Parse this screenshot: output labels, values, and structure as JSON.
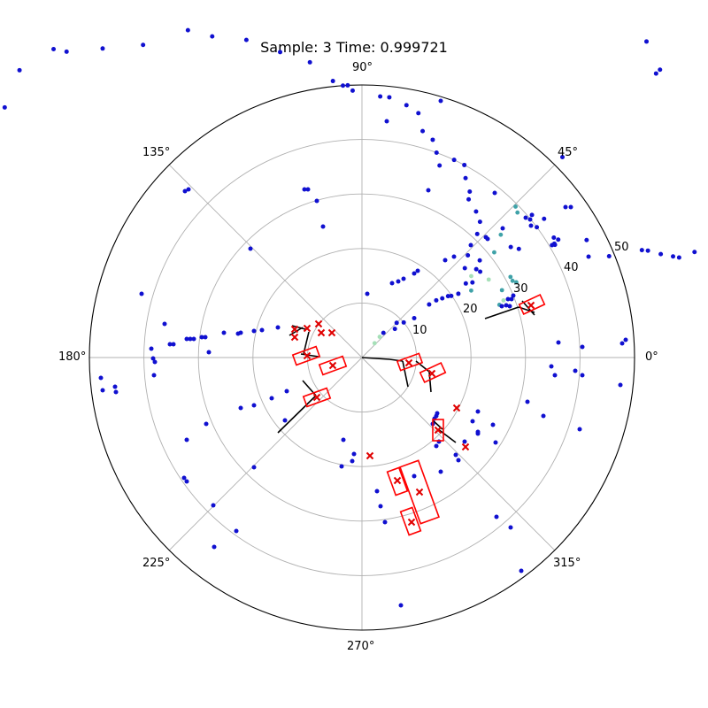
{
  "chart_data": {
    "type": "polar-scatter",
    "title": "Sample: 3 Time: 0.999721",
    "angle_ticks": [
      "0°",
      "45°",
      "90°",
      "135°",
      "180°",
      "225°",
      "270°",
      "315°"
    ],
    "radial_ticks": [
      "10",
      "20",
      "30",
      "40",
      "50"
    ],
    "rlim": [
      0,
      50
    ],
    "grid": true,
    "points_dark_blue": [
      [
        5.5,
        95
      ],
      [
        7,
        98
      ],
      [
        10.2,
        93.5
      ],
      [
        13.2,
        89
      ],
      [
        17,
        85
      ],
      [
        16.5,
        72
      ],
      [
        17.6,
        64
      ],
      [
        17.5,
        61
      ],
      [
        18,
        60
      ],
      [
        19.1,
        58
      ],
      [
        20.5,
        56
      ],
      [
        21,
        55
      ],
      [
        22.3,
        49
      ],
      [
        24,
        45.5
      ],
      [
        27.6,
        46.5
      ],
      [
        30.3,
        41
      ],
      [
        30.6,
        41
      ],
      [
        30.6,
        40.5
      ],
      [
        31,
        42
      ],
      [
        32,
        41.5
      ],
      [
        34.7,
        35
      ],
      [
        37.3,
        42
      ],
      [
        36.7,
        40
      ],
      [
        36.6,
        34
      ],
      [
        40,
        40.7
      ],
      [
        40.5,
        39.5
      ],
      [
        44,
        75
      ],
      [
        44,
        76
      ],
      [
        45,
        52
      ],
      [
        48,
        78
      ],
      [
        37,
        12
      ],
      [
        40,
        10
      ],
      [
        41,
        8
      ],
      [
        45,
        9
      ],
      [
        49,
        6
      ],
      [
        38.3,
        15.7
      ],
      [
        37.6,
        17.2
      ],
      [
        36.4,
        18.3
      ],
      [
        35.5,
        19.4
      ],
      [
        34.6,
        19.9
      ],
      [
        33.5,
        21.2
      ],
      [
        35.5,
        23.4
      ],
      [
        34.2,
        24.5
      ],
      [
        36,
        26.8
      ],
      [
        37.7,
        26.5
      ],
      [
        39.5,
        28
      ],
      [
        41,
        25
      ],
      [
        44,
        27
      ],
      [
        47,
        31
      ],
      [
        49,
        33
      ],
      [
        52,
        34
      ],
      [
        56,
        35
      ],
      [
        57,
        36.3
      ],
      [
        60,
        38
      ],
      [
        62,
        40
      ],
      [
        65,
        40
      ],
      [
        68,
        38
      ],
      [
        70,
        40
      ],
      [
        72,
        42
      ],
      [
        75,
        43
      ],
      [
        77,
        46
      ],
      [
        80,
        47
      ],
      [
        84,
        48
      ],
      [
        86,
        48
      ],
      [
        92,
        49
      ],
      [
        93,
        50
      ],
      [
        94,
        50
      ],
      [
        96,
        51
      ],
      [
        100,
        55
      ],
      [
        105,
        58
      ],
      [
        110,
        62
      ],
      [
        115,
        65
      ],
      [
        118,
        68
      ],
      [
        125,
        70
      ],
      [
        130,
        74
      ],
      [
        134,
        78
      ],
      [
        135,
        80
      ],
      [
        140,
        82
      ],
      [
        145,
        80
      ],
      [
        148,
        82
      ],
      [
        150,
        85
      ],
      [
        152,
        88
      ],
      [
        155,
        90
      ],
      [
        160,
        95
      ],
      [
        165,
        100
      ],
      [
        170,
        105
      ],
      [
        175,
        110
      ],
      [
        180,
        115
      ],
      [
        185,
        118
      ],
      [
        188,
        120
      ],
      [
        190,
        122
      ],
      [
        195,
        125
      ],
      [
        200,
        125
      ],
      [
        205,
        125
      ]
    ],
    "points_teal": [
      [
        44.5,
        39.5
      ],
      [
        43,
        39
      ],
      [
        41.5,
        34
      ],
      [
        38.5,
        31
      ],
      [
        31.5,
        23.5
      ],
      [
        25.7,
        28.5
      ],
      [
        21,
        27
      ],
      [
        26,
        31.5
      ],
      [
        27,
        31
      ],
      [
        28.5,
        31
      ]
    ],
    "points_light_green": [
      [
        48.6,
        3.5
      ],
      [
        49.5,
        5
      ],
      [
        36.7,
        25
      ],
      [
        31.6,
        27.3
      ],
      [
        22,
        28
      ]
    ],
    "boxes": [
      [
        8.5,
        48
      ],
      [
        13,
        44.5
      ],
      [
        15.5,
        49
      ],
      [
        17.5,
        62
      ],
      [
        21,
        65.5
      ],
      [
        24,
        71
      ],
      [
        27,
        80
      ],
      [
        30,
        80
      ],
      [
        32,
        70
      ]
    ],
    "crosses": [
      [
        8.5,
        48
      ],
      [
        13,
        44
      ],
      [
        15.5,
        49
      ],
      [
        17.5,
        63
      ],
      [
        20,
        69.5
      ],
      [
        21.2,
        67
      ],
      [
        24,
        71
      ],
      [
        27.5,
        80
      ],
      [
        30,
        79
      ]
    ]
  }
}
